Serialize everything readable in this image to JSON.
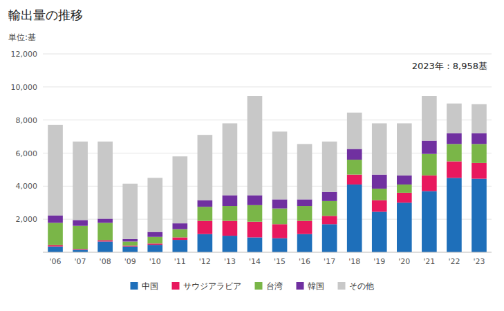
{
  "chart_data": {
    "type": "bar",
    "stacked": true,
    "title": "輸出量の推移",
    "ylabel": "単位:基",
    "annotations": [
      "2023年：8,958基"
    ],
    "categories": [
      "'06",
      "'07",
      "'08",
      "'09",
      "'10",
      "'11",
      "'12",
      "'13",
      "'14",
      "'15",
      "'16",
      "'17",
      "'18",
      "'19",
      "'20",
      "'21",
      "'22",
      "'23"
    ],
    "series": [
      {
        "name": "中国",
        "color": "#1e6fba",
        "values": [
          350,
          150,
          650,
          350,
          450,
          750,
          1100,
          1000,
          900,
          850,
          1100,
          1700,
          4100,
          2450,
          3000,
          3700,
          4500,
          4450
        ]
      },
      {
        "name": "サウジアラビア",
        "color": "#e8185e",
        "values": [
          80,
          50,
          80,
          50,
          80,
          150,
          800,
          900,
          950,
          850,
          800,
          500,
          600,
          700,
          600,
          950,
          1000,
          950
        ]
      },
      {
        "name": "台湾",
        "color": "#7ab648",
        "values": [
          1350,
          1400,
          1050,
          250,
          400,
          500,
          850,
          900,
          1000,
          950,
          900,
          900,
          900,
          700,
          500,
          1300,
          1050,
          1150
        ]
      },
      {
        "name": "韓国",
        "color": "#7030a0",
        "values": [
          450,
          350,
          250,
          150,
          300,
          350,
          400,
          650,
          600,
          550,
          400,
          550,
          650,
          850,
          550,
          800,
          650,
          650
        ]
      },
      {
        "name": "その他",
        "color": "#c8c8c8",
        "values": [
          5470,
          4750,
          4670,
          3350,
          3270,
          4050,
          3950,
          4350,
          6000,
          4100,
          3350,
          3050,
          2200,
          3100,
          3150,
          2700,
          1800,
          1758
        ]
      }
    ],
    "ylim": [
      0,
      12000
    ],
    "yticks": [
      {
        "value": 2000,
        "label": "2,000"
      },
      {
        "value": 4000,
        "label": "4,000"
      },
      {
        "value": 6000,
        "label": "6,000"
      },
      {
        "value": 8000,
        "label": "8,000"
      },
      {
        "value": 10000,
        "label": "10,000"
      },
      {
        "value": 12000,
        "label": "12,000"
      }
    ],
    "grid": true,
    "legend": "bottom"
  }
}
